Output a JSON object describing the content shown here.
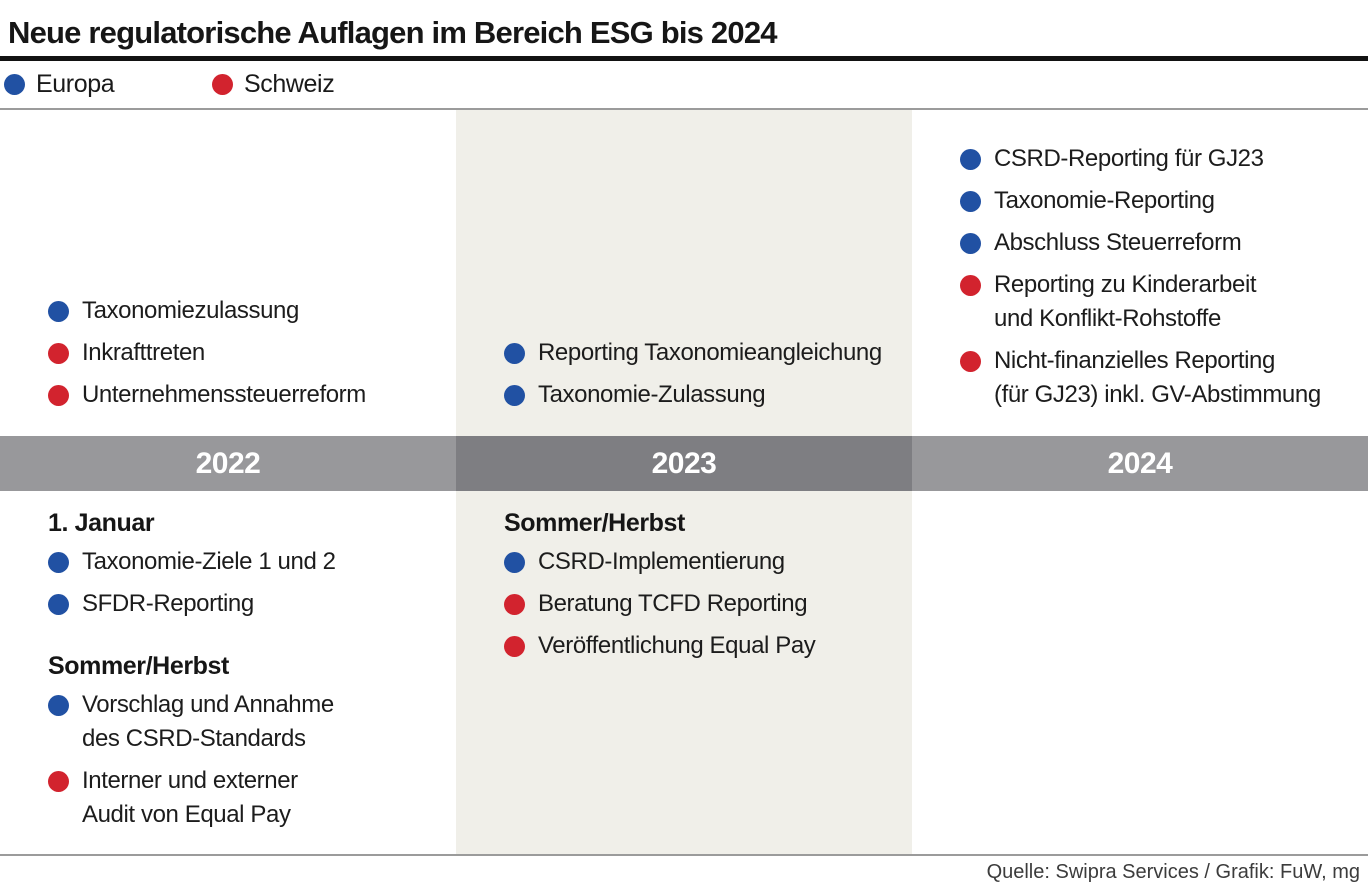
{
  "title": "Neue regulatorische Auflagen im Bereich ESG bis 2024",
  "source": "Quelle: Swipra Services / Grafik: FuW, mg",
  "colors": {
    "europa": "#2151a3",
    "schweiz": "#d2232e",
    "band": "#98989b",
    "band_shaded": "#7e7e82",
    "shaded_column_bg": "#f0efe9"
  },
  "legend": {
    "items": [
      {
        "label": "Europa",
        "region": "europa"
      },
      {
        "label": "Schweiz",
        "region": "schweiz"
      }
    ]
  },
  "columns": [
    {
      "year": "2022",
      "shaded": false,
      "above": [
        {
          "region": "europa",
          "text": "Taxonomiezulassung"
        },
        {
          "region": "schweiz",
          "text": "Inkrafttreten"
        },
        {
          "region": "schweiz",
          "text": "Unternehmenssteuerreform"
        }
      ],
      "below": [
        {
          "heading": "1. Januar",
          "items": [
            {
              "region": "europa",
              "text": "Taxonomie-Ziele 1 und 2"
            },
            {
              "region": "europa",
              "text": "SFDR-Reporting"
            }
          ]
        },
        {
          "heading": "Sommer/Herbst",
          "items": [
            {
              "region": "europa",
              "text": "Vorschlag und Annahme\ndes CSRD-Standards"
            },
            {
              "region": "schweiz",
              "text": "Interner und externer\nAudit von Equal Pay"
            }
          ]
        }
      ]
    },
    {
      "year": "2023",
      "shaded": true,
      "above": [
        {
          "region": "europa",
          "text": "Reporting Taxonomieangleichung"
        },
        {
          "region": "europa",
          "text": "Taxonomie-Zulassung"
        }
      ],
      "below": [
        {
          "heading": "Sommer/Herbst",
          "items": [
            {
              "region": "europa",
              "text": "CSRD-Implementierung"
            },
            {
              "region": "schweiz",
              "text": "Beratung TCFD Reporting"
            },
            {
              "region": "schweiz",
              "text": "Veröffentlichung Equal Pay"
            }
          ]
        }
      ]
    },
    {
      "year": "2024",
      "shaded": false,
      "above": [
        {
          "region": "europa",
          "text": "CSRD-Reporting für GJ23"
        },
        {
          "region": "europa",
          "text": "Taxonomie-Reporting"
        },
        {
          "region": "europa",
          "text": "Abschluss Steuerreform"
        },
        {
          "region": "schweiz",
          "text": "Reporting zu Kinderarbeit\nund Konflikt-Rohstoffe"
        },
        {
          "region": "schweiz",
          "text": "Nicht-finanzielles Reporting\n(für GJ23) inkl. GV-Abstimmung"
        }
      ],
      "below": []
    }
  ]
}
